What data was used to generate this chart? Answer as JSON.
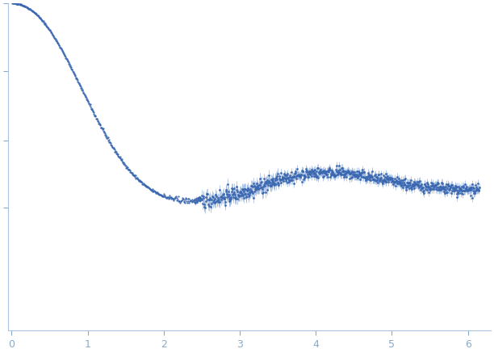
{
  "title": "",
  "xlabel": "",
  "ylabel": "",
  "xlim": [
    -0.05,
    6.3
  ],
  "ylim": [
    -0.6,
    1.0
  ],
  "dot_color": "#3a67b0",
  "error_color": "#8aaad8",
  "bg_color": "#ffffff",
  "axis_color": "#aac4e0",
  "tick_color": "#88aacc",
  "tick_label_color": "#88aacc",
  "x_ticks": [
    0,
    1,
    2,
    3,
    4,
    5,
    6
  ],
  "seed": 42,
  "y_tick_positions": [
    0.0,
    0.33,
    0.67,
    1.0
  ]
}
